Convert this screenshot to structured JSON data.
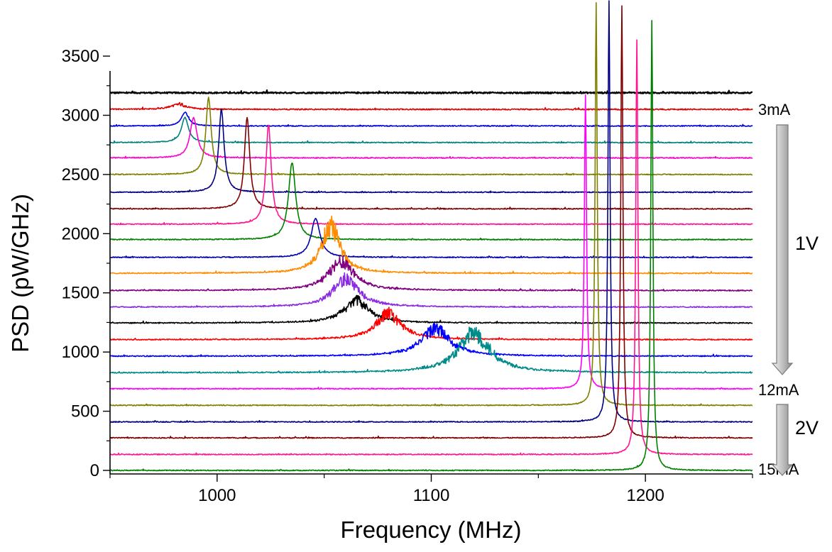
{
  "chart_data": {
    "type": "line",
    "xlabel": "Frequency (MHz)",
    "ylabel": "PSD (pW/GHz)",
    "xlim": [
      950,
      1250
    ],
    "ylim": [
      -30,
      3950
    ],
    "x_ticks": [
      "1000",
      "1100",
      "1200"
    ],
    "y_ticks": [
      "0",
      "500",
      "1000",
      "1500",
      "2000",
      "2500",
      "3000",
      "3500"
    ],
    "grid": false,
    "annotations": {
      "start_current": "3mA",
      "mid_current": "12mA",
      "end_current": "15mA",
      "bias_1": "1V",
      "bias_2": "2V"
    },
    "series": [
      {
        "color": "#000000",
        "baseline": 3190,
        "peak_x": 990,
        "peak_height": 0,
        "width": 0,
        "noise": 12
      },
      {
        "color": "#e00000",
        "baseline": 3050,
        "peak_x": 982,
        "peak_height": 45,
        "width": 4,
        "noise": 10
      },
      {
        "color": "#0000e0",
        "baseline": 2910,
        "peak_x": 985,
        "peak_height": 115,
        "width": 2,
        "noise": 8
      },
      {
        "color": "#008080",
        "baseline": 2770,
        "peak_x": 985,
        "peak_height": 210,
        "width": 2,
        "noise": 8
      },
      {
        "color": "#ff00cc",
        "baseline": 2640,
        "peak_x": 989,
        "peak_height": 340,
        "width": 2,
        "noise": 8
      },
      {
        "color": "#808000",
        "baseline": 2500,
        "peak_x": 996,
        "peak_height": 650,
        "width": 1.5,
        "noise": 8
      },
      {
        "color": "#000080",
        "baseline": 2350,
        "peak_x": 1002,
        "peak_height": 700,
        "width": 1.5,
        "noise": 8
      },
      {
        "color": "#800000",
        "baseline": 2210,
        "peak_x": 1014,
        "peak_height": 770,
        "width": 1.5,
        "noise": 8
      },
      {
        "color": "#ff1493",
        "baseline": 2080,
        "peak_x": 1024,
        "peak_height": 840,
        "width": 1.5,
        "noise": 8
      },
      {
        "color": "#008000",
        "baseline": 1950,
        "peak_x": 1035,
        "peak_height": 650,
        "width": 2,
        "noise": 8
      },
      {
        "color": "#0000b0",
        "baseline": 1800,
        "peak_x": 1046,
        "peak_height": 330,
        "width": 2.5,
        "noise": 8
      },
      {
        "color": "#ff8c00",
        "baseline": 1665,
        "peak_x": 1053,
        "peak_height": 400,
        "width": 5,
        "noise": 9
      },
      {
        "color": "#800080",
        "baseline": 1520,
        "peak_x": 1058,
        "peak_height": 250,
        "width": 7,
        "noise": 9
      },
      {
        "color": "#8a2be2",
        "baseline": 1380,
        "peak_x": 1060,
        "peak_height": 240,
        "width": 7,
        "noise": 9
      },
      {
        "color": "#000000",
        "baseline": 1245,
        "peak_x": 1065,
        "peak_height": 190,
        "width": 7,
        "noise": 9
      },
      {
        "color": "#ff0000",
        "baseline": 1105,
        "peak_x": 1080,
        "peak_height": 220,
        "width": 7,
        "noise": 9
      },
      {
        "color": "#0000ff",
        "baseline": 965,
        "peak_x": 1102,
        "peak_height": 230,
        "width": 8,
        "noise": 9
      },
      {
        "color": "#008b8b",
        "baseline": 825,
        "peak_x": 1120,
        "peak_height": 330,
        "width": 9,
        "noise": 9
      },
      {
        "color": "#ff00ff",
        "baseline": 690,
        "peak_x": 1172,
        "peak_height": 2480,
        "width": 0.6,
        "noise": 8
      },
      {
        "color": "#808000",
        "baseline": 550,
        "peak_x": 1177,
        "peak_height": 3400,
        "width": 0.6,
        "noise": 8
      },
      {
        "color": "#000080",
        "baseline": 410,
        "peak_x": 1183,
        "peak_height": 3560,
        "width": 0.6,
        "noise": 8
      },
      {
        "color": "#800000",
        "baseline": 275,
        "peak_x": 1189,
        "peak_height": 3650,
        "width": 0.6,
        "noise": 8
      },
      {
        "color": "#ff1493",
        "baseline": 135,
        "peak_x": 1196,
        "peak_height": 3500,
        "width": 0.6,
        "noise": 8
      },
      {
        "color": "#008000",
        "baseline": 0,
        "peak_x": 1203,
        "peak_height": 3800,
        "width": 0.6,
        "noise": 8
      }
    ]
  }
}
